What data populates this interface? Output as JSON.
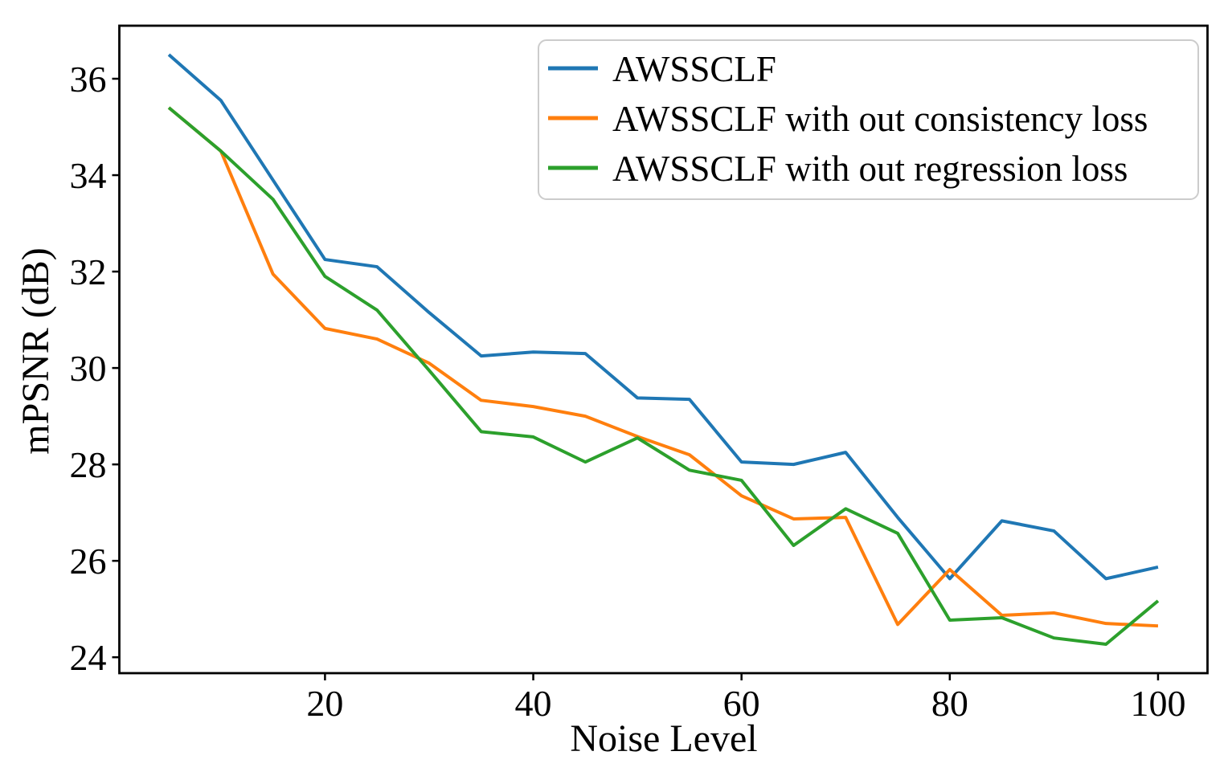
{
  "figure": {
    "background": "#ffffff",
    "axis_color": "#000000",
    "legend_border_color": "#cccccc"
  },
  "chart_data": {
    "type": "line",
    "title": "",
    "xlabel": "Noise Level",
    "ylabel": "mPSNR (dB)",
    "grid": false,
    "legend_position": "upper right",
    "xlim": [
      0.25,
      104.75
    ],
    "ylim": [
      23.67,
      37.1
    ],
    "xticks": [
      20,
      40,
      60,
      80,
      100
    ],
    "yticks": [
      24,
      26,
      28,
      30,
      32,
      34,
      36
    ],
    "x": [
      5,
      10,
      15,
      20,
      25,
      30,
      35,
      40,
      45,
      50,
      55,
      60,
      65,
      70,
      75,
      80,
      85,
      90,
      95,
      100
    ],
    "series": [
      {
        "name": "AWSSCLF",
        "color": "#1f77b4",
        "values": [
          36.5,
          35.55,
          33.9,
          32.25,
          32.1,
          31.15,
          30.25,
          30.33,
          30.3,
          29.38,
          29.35,
          28.05,
          28.0,
          28.25,
          26.9,
          25.63,
          26.83,
          26.62,
          25.63,
          25.87
        ]
      },
      {
        "name": "AWSSCLF with out consistency loss",
        "color": "#ff7f0e",
        "values": [
          35.4,
          34.5,
          31.95,
          30.82,
          30.6,
          30.1,
          29.33,
          29.2,
          29.0,
          28.58,
          28.2,
          27.35,
          26.87,
          26.9,
          24.68,
          25.82,
          24.87,
          24.92,
          24.7,
          24.65
        ]
      },
      {
        "name": "AWSSCLF with out regression loss",
        "color": "#2ca02c",
        "values": [
          35.4,
          34.5,
          33.5,
          31.9,
          31.2,
          29.95,
          28.68,
          28.57,
          28.05,
          28.55,
          27.88,
          27.67,
          26.32,
          27.08,
          26.57,
          24.77,
          24.82,
          24.4,
          24.27,
          25.17
        ]
      }
    ]
  }
}
